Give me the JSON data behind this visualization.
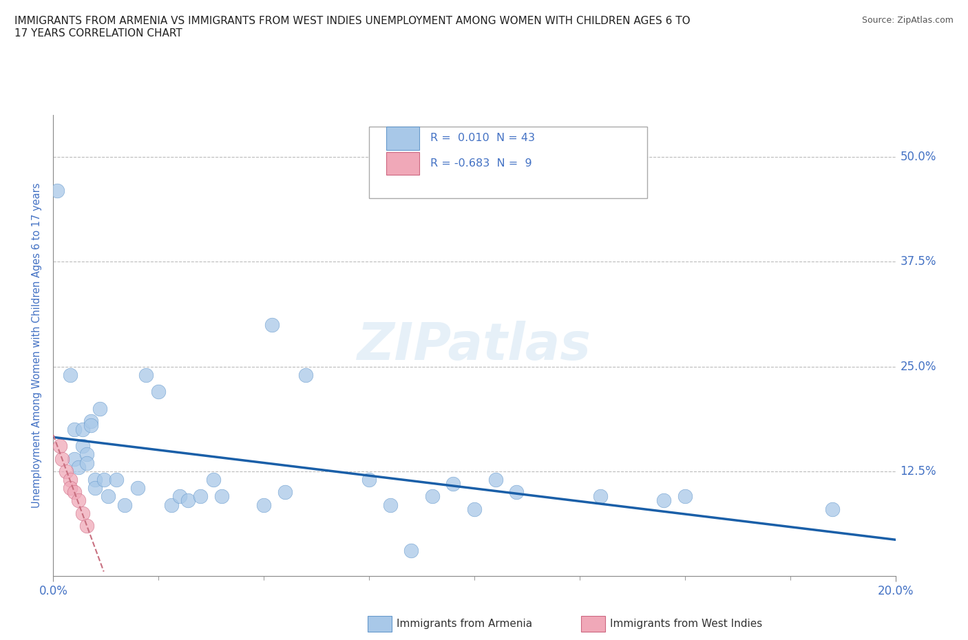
{
  "title": "IMMIGRANTS FROM ARMENIA VS IMMIGRANTS FROM WEST INDIES UNEMPLOYMENT AMONG WOMEN WITH CHILDREN AGES 6 TO\n17 YEARS CORRELATION CHART",
  "source": "Source: ZipAtlas.com",
  "ylabel": "Unemployment Among Women with Children Ages 6 to 17 years",
  "xlim": [
    0.0,
    0.2
  ],
  "ylim": [
    0.0,
    0.55
  ],
  "ytick_positions": [
    0.125,
    0.25,
    0.375,
    0.5
  ],
  "ytick_labels": [
    "12.5%",
    "25.0%",
    "37.5%",
    "50.0%"
  ],
  "xtick_positions": [
    0.0,
    0.2
  ],
  "xtick_labels": [
    "0.0%",
    "20.0%"
  ],
  "armenia_x": [
    0.001,
    0.004,
    0.005,
    0.005,
    0.006,
    0.007,
    0.007,
    0.008,
    0.008,
    0.009,
    0.009,
    0.01,
    0.01,
    0.011,
    0.012,
    0.013,
    0.015,
    0.017,
    0.02,
    0.022,
    0.025,
    0.028,
    0.03,
    0.032,
    0.035,
    0.038,
    0.04,
    0.05,
    0.052,
    0.055,
    0.06,
    0.075,
    0.08,
    0.085,
    0.09,
    0.1,
    0.105,
    0.11,
    0.145,
    0.15,
    0.185,
    0.095,
    0.13
  ],
  "armenia_y": [
    0.46,
    0.24,
    0.14,
    0.175,
    0.13,
    0.175,
    0.155,
    0.145,
    0.135,
    0.185,
    0.18,
    0.115,
    0.105,
    0.2,
    0.115,
    0.095,
    0.115,
    0.085,
    0.105,
    0.24,
    0.22,
    0.085,
    0.095,
    0.09,
    0.095,
    0.115,
    0.095,
    0.085,
    0.3,
    0.1,
    0.24,
    0.115,
    0.085,
    0.03,
    0.095,
    0.08,
    0.115,
    0.1,
    0.09,
    0.095,
    0.08,
    0.11,
    0.095
  ],
  "west_indies_x": [
    0.0015,
    0.002,
    0.003,
    0.004,
    0.004,
    0.005,
    0.006,
    0.007,
    0.008
  ],
  "west_indies_y": [
    0.155,
    0.14,
    0.125,
    0.115,
    0.105,
    0.1,
    0.09,
    0.075,
    0.06
  ],
  "armenia_color": "#a8c8e8",
  "armenia_edge_color": "#6699cc",
  "west_indies_color": "#f0a8b8",
  "west_indies_edge_color": "#cc6680",
  "armenia_r": 0.01,
  "armenia_n": 43,
  "west_indies_r": -0.683,
  "west_indies_n": 9,
  "trend_armenia_color": "#1a5fa8",
  "trend_west_indies_color": "#c87080",
  "watermark": "ZIPatlas",
  "title_color": "#222222",
  "tick_label_color": "#4472c4",
  "grid_color": "#aaaaaa",
  "minor_xticks": [
    0.025,
    0.05,
    0.075,
    0.1,
    0.125,
    0.15,
    0.175
  ],
  "bottom_legend_labels": [
    "Immigrants from Armenia",
    "Immigrants from West Indies"
  ]
}
